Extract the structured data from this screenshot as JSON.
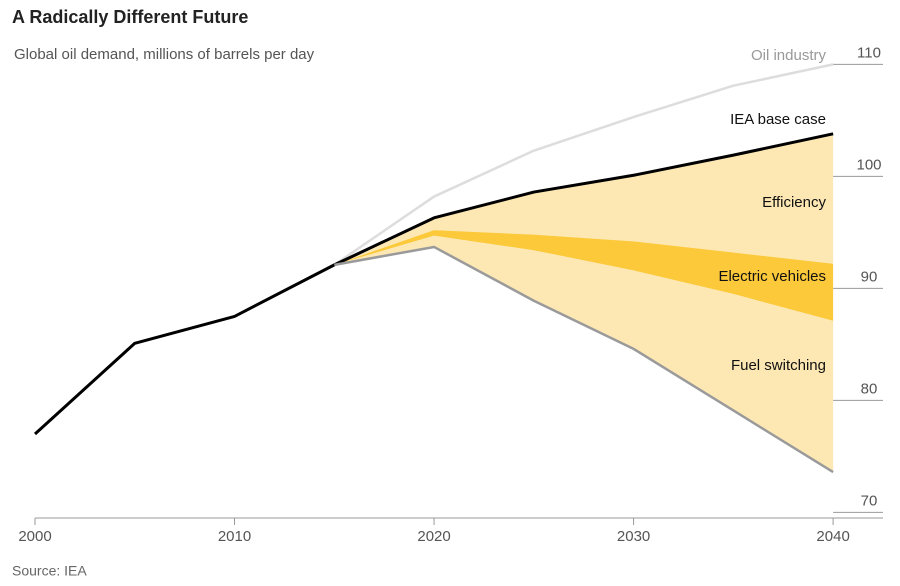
{
  "chart_data": {
    "type": "line",
    "title": "A Radically Different Future",
    "subtitle": "Global oil demand, millions of barrels per day",
    "source": "Source: IEA",
    "x": [
      2000,
      2005,
      2010,
      2015,
      2020,
      2025,
      2030,
      2035,
      2040
    ],
    "xlim": [
      2000,
      2042.5
    ],
    "xticks": [
      2000,
      2010,
      2020,
      2030,
      2040
    ],
    "ylim": [
      69.5,
      112
    ],
    "yticks": [
      70,
      80,
      90,
      100,
      110
    ],
    "series": [
      {
        "name": "Oil industry",
        "color": "#dddddd",
        "values": [
          null,
          null,
          null,
          92.1,
          98.2,
          102.3,
          105.3,
          108.1,
          110
        ]
      },
      {
        "name": "IEA base case",
        "color": "#000000",
        "values": [
          77.0,
          85.1,
          87.5,
          92.1,
          96.3,
          98.6,
          100.1,
          101.9,
          103.8
        ]
      },
      {
        "name": "Efficiency",
        "fill": "#fde8b4",
        "values": [
          null,
          null,
          null,
          92.1,
          95.2,
          94.8,
          94.2,
          93.2,
          92.2
        ]
      },
      {
        "name": "Electric vehicles",
        "fill": "#fcc93a",
        "values": [
          null,
          null,
          null,
          92.1,
          94.7,
          93.4,
          91.6,
          89.5,
          87.1
        ]
      },
      {
        "name": "Fuel switching",
        "fill": "#fde8b4",
        "color": "#9a9a9a",
        "values": [
          null,
          null,
          null,
          92.1,
          93.7,
          88.9,
          84.6,
          79.1,
          73.6
        ]
      }
    ]
  }
}
